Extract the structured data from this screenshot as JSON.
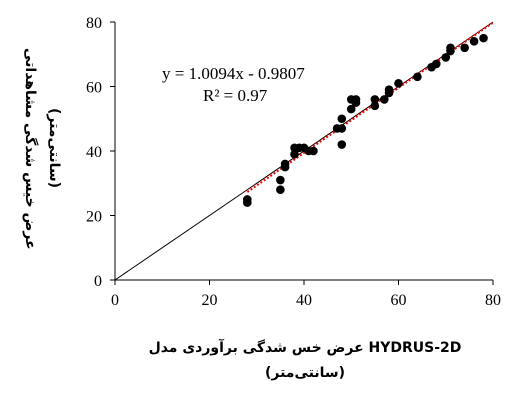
{
  "chart_data": {
    "type": "scatter",
    "xlabel_line1": "عرض خس شدگی برآوردی مدل HYDRUS-2D",
    "xlabel_line2": "(سانتی‌متر)",
    "ylabel_line1": "عرض خیس شدگی مشاهداتی",
    "ylabel_line2": "(سانتی‌متر)",
    "xlim": [
      0,
      80
    ],
    "ylim": [
      0,
      80
    ],
    "xticks": [
      0,
      20,
      40,
      60,
      80
    ],
    "yticks": [
      0,
      20,
      40,
      60,
      80
    ],
    "xtick_labels": [
      "0",
      "20",
      "40",
      "60",
      "80"
    ],
    "ytick_labels": [
      "0",
      "20",
      "40",
      "60",
      "80"
    ],
    "equation": "y = 1.0094x - 0.9807",
    "r_squared": "R² = 0.97",
    "one_to_one_line": true,
    "trendline": {
      "slope": 1.0094,
      "intercept": -0.9807,
      "x_range": [
        28,
        80
      ],
      "color": "#ff0000",
      "style": "dotted"
    },
    "series": [
      {
        "color": "#000000",
        "points": [
          [
            28,
            24
          ],
          [
            28,
            25
          ],
          [
            35,
            28
          ],
          [
            35,
            31
          ],
          [
            36,
            35
          ],
          [
            36,
            36
          ],
          [
            38,
            39
          ],
          [
            38,
            41
          ],
          [
            39,
            41
          ],
          [
            40,
            41
          ],
          [
            41,
            40
          ],
          [
            42,
            40
          ],
          [
            47,
            47
          ],
          [
            48,
            47
          ],
          [
            48,
            50
          ],
          [
            48,
            42
          ],
          [
            50,
            53
          ],
          [
            50,
            56
          ],
          [
            51,
            55
          ],
          [
            51,
            56
          ],
          [
            55,
            54
          ],
          [
            55,
            56
          ],
          [
            57,
            56
          ],
          [
            58,
            58
          ],
          [
            58,
            59
          ],
          [
            60,
            61
          ],
          [
            64,
            63
          ],
          [
            67,
            66
          ],
          [
            68,
            67
          ],
          [
            70,
            69
          ],
          [
            71,
            71
          ],
          [
            71,
            72
          ],
          [
            74,
            72
          ],
          [
            76,
            74
          ],
          [
            78,
            75
          ]
        ]
      }
    ]
  }
}
